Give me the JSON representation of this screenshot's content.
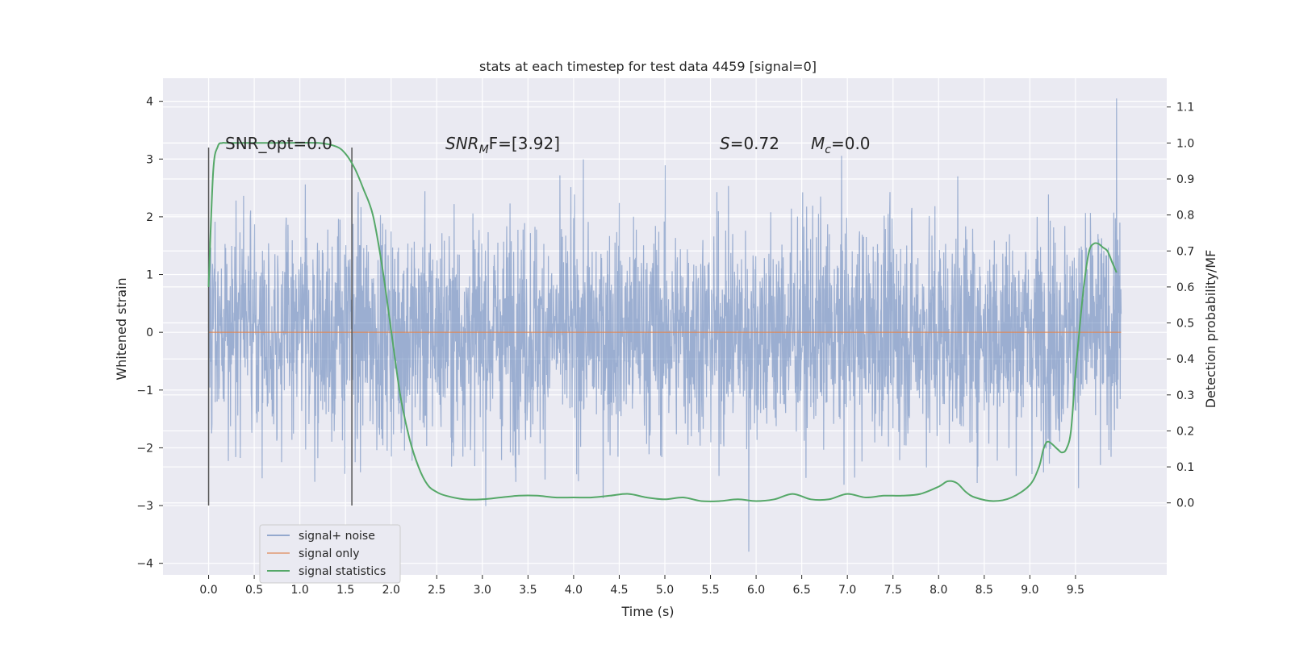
{
  "chart_data": {
    "type": "line",
    "title": "stats at each timestep for test data 4459 [signal=0]",
    "xlabel": "Time (s)",
    "ylabel": "Whitened strain",
    "ylabel_right": "Detection probability/MF",
    "xlim": [
      -0.5,
      10.5
    ],
    "ylim": [
      -4.2,
      4.4
    ],
    "ylim_right": [
      -0.2,
      1.18
    ],
    "x_ticks": [
      "0.0",
      "0.5",
      "1.0",
      "1.5",
      "2.0",
      "2.5",
      "3.0",
      "3.5",
      "4.0",
      "4.5",
      "5.0",
      "5.5",
      "6.0",
      "6.5",
      "7.0",
      "7.5",
      "8.0",
      "8.5",
      "9.0",
      "9.5"
    ],
    "y_ticks": [
      "4",
      "3",
      "2",
      "1",
      "0",
      "−1",
      "−2",
      "−3",
      "−4"
    ],
    "y_ticks_right": [
      "1.1",
      "1.0",
      "0.9",
      "0.8",
      "0.7",
      "0.6",
      "0.5",
      "0.4",
      "0.3",
      "0.2",
      "0.1",
      "0.0"
    ],
    "grid": true,
    "legend_position": "lower-left",
    "vertical_markers": [
      0.0,
      1.57
    ],
    "annotations": {
      "snr_opt": "SNR_opt=0.0",
      "snr_mf_prefix": "SNR",
      "snr_mf_sub": "M",
      "snr_mf_suffix": "F=[3.92]",
      "s_prefix": "S",
      "s_suffix": "=0.72",
      "mc_prefix": "M",
      "mc_sub": "c",
      "mc_suffix": "=0.0"
    },
    "series": [
      {
        "name": "signal+ noise",
        "color": "#4c72b0",
        "description_kind": "noise",
        "x_range": [
          0.0,
          10.0
        ],
        "envelope": {
          "typical_min": -2.0,
          "typical_max": 2.2,
          "peak_max": 4.05,
          "peak_min": -3.8
        }
      },
      {
        "name": "signal only",
        "color": "#dd8452",
        "x": [
          0.0,
          10.0
        ],
        "y": [
          0.0,
          0.0
        ]
      },
      {
        "name": "signal statistics",
        "color": "#55a868",
        "axis": "right",
        "x": [
          0.0,
          0.05,
          0.1,
          0.15,
          0.2,
          0.4,
          0.8,
          1.2,
          1.4,
          1.5,
          1.6,
          1.7,
          1.8,
          1.9,
          2.0,
          2.1,
          2.2,
          2.3,
          2.4,
          2.5,
          2.6,
          2.8,
          3.0,
          3.2,
          3.4,
          3.6,
          3.8,
          4.0,
          4.2,
          4.4,
          4.6,
          4.8,
          5.0,
          5.2,
          5.4,
          5.6,
          5.8,
          6.0,
          6.2,
          6.4,
          6.6,
          6.8,
          7.0,
          7.2,
          7.4,
          7.6,
          7.8,
          8.0,
          8.1,
          8.2,
          8.3,
          8.4,
          8.6,
          8.8,
          9.0,
          9.1,
          9.15,
          9.2,
          9.3,
          9.35,
          9.4,
          9.45,
          9.5,
          9.55,
          9.6,
          9.65,
          9.7,
          9.75,
          9.8,
          9.85,
          9.9,
          9.95
        ],
        "y": [
          0.6,
          0.92,
          0.99,
          1.0,
          1.0,
          1.0,
          1.0,
          1.0,
          0.99,
          0.97,
          0.93,
          0.87,
          0.8,
          0.66,
          0.48,
          0.3,
          0.18,
          0.1,
          0.05,
          0.03,
          0.02,
          0.01,
          0.01,
          0.015,
          0.02,
          0.02,
          0.015,
          0.015,
          0.015,
          0.02,
          0.025,
          0.015,
          0.01,
          0.015,
          0.005,
          0.005,
          0.01,
          0.005,
          0.01,
          0.025,
          0.01,
          0.01,
          0.025,
          0.015,
          0.02,
          0.02,
          0.025,
          0.045,
          0.06,
          0.055,
          0.03,
          0.015,
          0.005,
          0.015,
          0.05,
          0.1,
          0.15,
          0.17,
          0.15,
          0.14,
          0.15,
          0.2,
          0.36,
          0.5,
          0.62,
          0.7,
          0.72,
          0.72,
          0.71,
          0.7,
          0.67,
          0.64
        ]
      }
    ]
  }
}
